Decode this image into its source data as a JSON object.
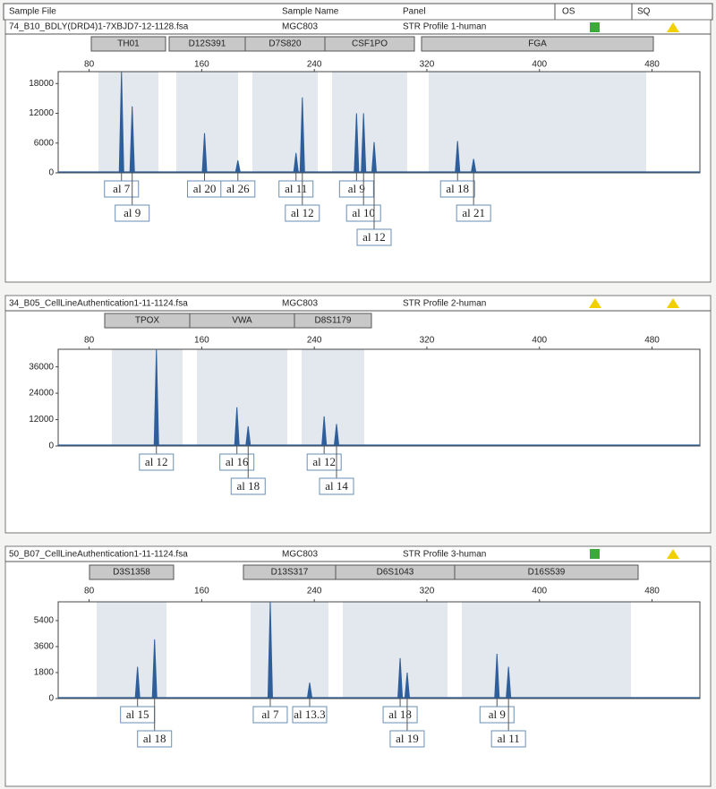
{
  "header": {
    "columns": [
      "Sample File",
      "Sample Name",
      "Panel",
      "OS",
      "SQ"
    ]
  },
  "chart_data": [
    {
      "type": "stem",
      "sample_file": "74_B10_BDLY(DRD4)1-7XBJD7-12-1128.fsa",
      "sample_name": "MGC803",
      "panel": "STR Profile 1-human",
      "markers": [
        "TH01",
        "D12S391",
        "D7S820",
        "CSF1PO",
        "FGA"
      ],
      "x": [
        103,
        110.6,
        162,
        185.7,
        227,
        231.5,
        270,
        275,
        282.5,
        341.8,
        353.2
      ],
      "values": [
        20400,
        13400,
        8000,
        2500,
        4000,
        15200,
        12000,
        12000,
        6200,
        6400,
        2800
      ],
      "labels": [
        "al 7",
        "al 9",
        "al 20",
        "al 26",
        "al 11",
        "al 12",
        "al 9",
        "al 10",
        "al 12",
        "al 18",
        "al 21"
      ],
      "xlim": [
        58,
        514
      ],
      "xticks": [
        80,
        160,
        240,
        320,
        400,
        480
      ],
      "ylim": [
        0,
        20400
      ],
      "yticks": [
        0,
        6000,
        12000,
        18000
      ],
      "color": "#2f5f9a"
    },
    {
      "type": "stem",
      "sample_file": "34_B05_CellLineAuthentication1-11-1124.fsa",
      "sample_name": "MGC803",
      "panel": "STR Profile 2-human",
      "markers": [
        "TPOX",
        "VWA",
        "D8S1179"
      ],
      "x": [
        127.8,
        185,
        193,
        247,
        255.8
      ],
      "values": [
        44000,
        17600,
        9000,
        13500,
        10000
      ],
      "labels": [
        "al 12",
        "al 16",
        "al 18",
        "al 12",
        "al 14"
      ],
      "xlim": [
        58,
        514
      ],
      "xticks": [
        80,
        160,
        240,
        320,
        400,
        480
      ],
      "ylim": [
        0,
        44000
      ],
      "yticks": [
        0,
        12000,
        24000,
        36000
      ],
      "color": "#2f5f9a"
    },
    {
      "type": "stem",
      "sample_file": "50_B07_CellLineAuthentication1-11-1124.fsa",
      "sample_name": "MGC803",
      "panel": "STR Profile 3-human",
      "markers": [
        "D3S1358",
        "D13S317",
        "D6S1043",
        "D16S539"
      ],
      "x": [
        114.4,
        126.5,
        208.7,
        236.7,
        301,
        306,
        369.8,
        378
      ],
      "values": [
        2200,
        4100,
        6700,
        1100,
        2800,
        1800,
        3100,
        2200
      ],
      "labels": [
        "al 15",
        "al 18",
        "al 7",
        "al 13.3",
        "al 18",
        "al 19",
        "al 9",
        "al 11"
      ],
      "xlim": [
        58,
        514
      ],
      "xticks": [
        80,
        160,
        240,
        320,
        400,
        480
      ],
      "ylim": [
        0,
        6700
      ],
      "yticks": [
        0,
        1800,
        3600,
        5400
      ],
      "color": "#2f5f9a"
    }
  ]
}
